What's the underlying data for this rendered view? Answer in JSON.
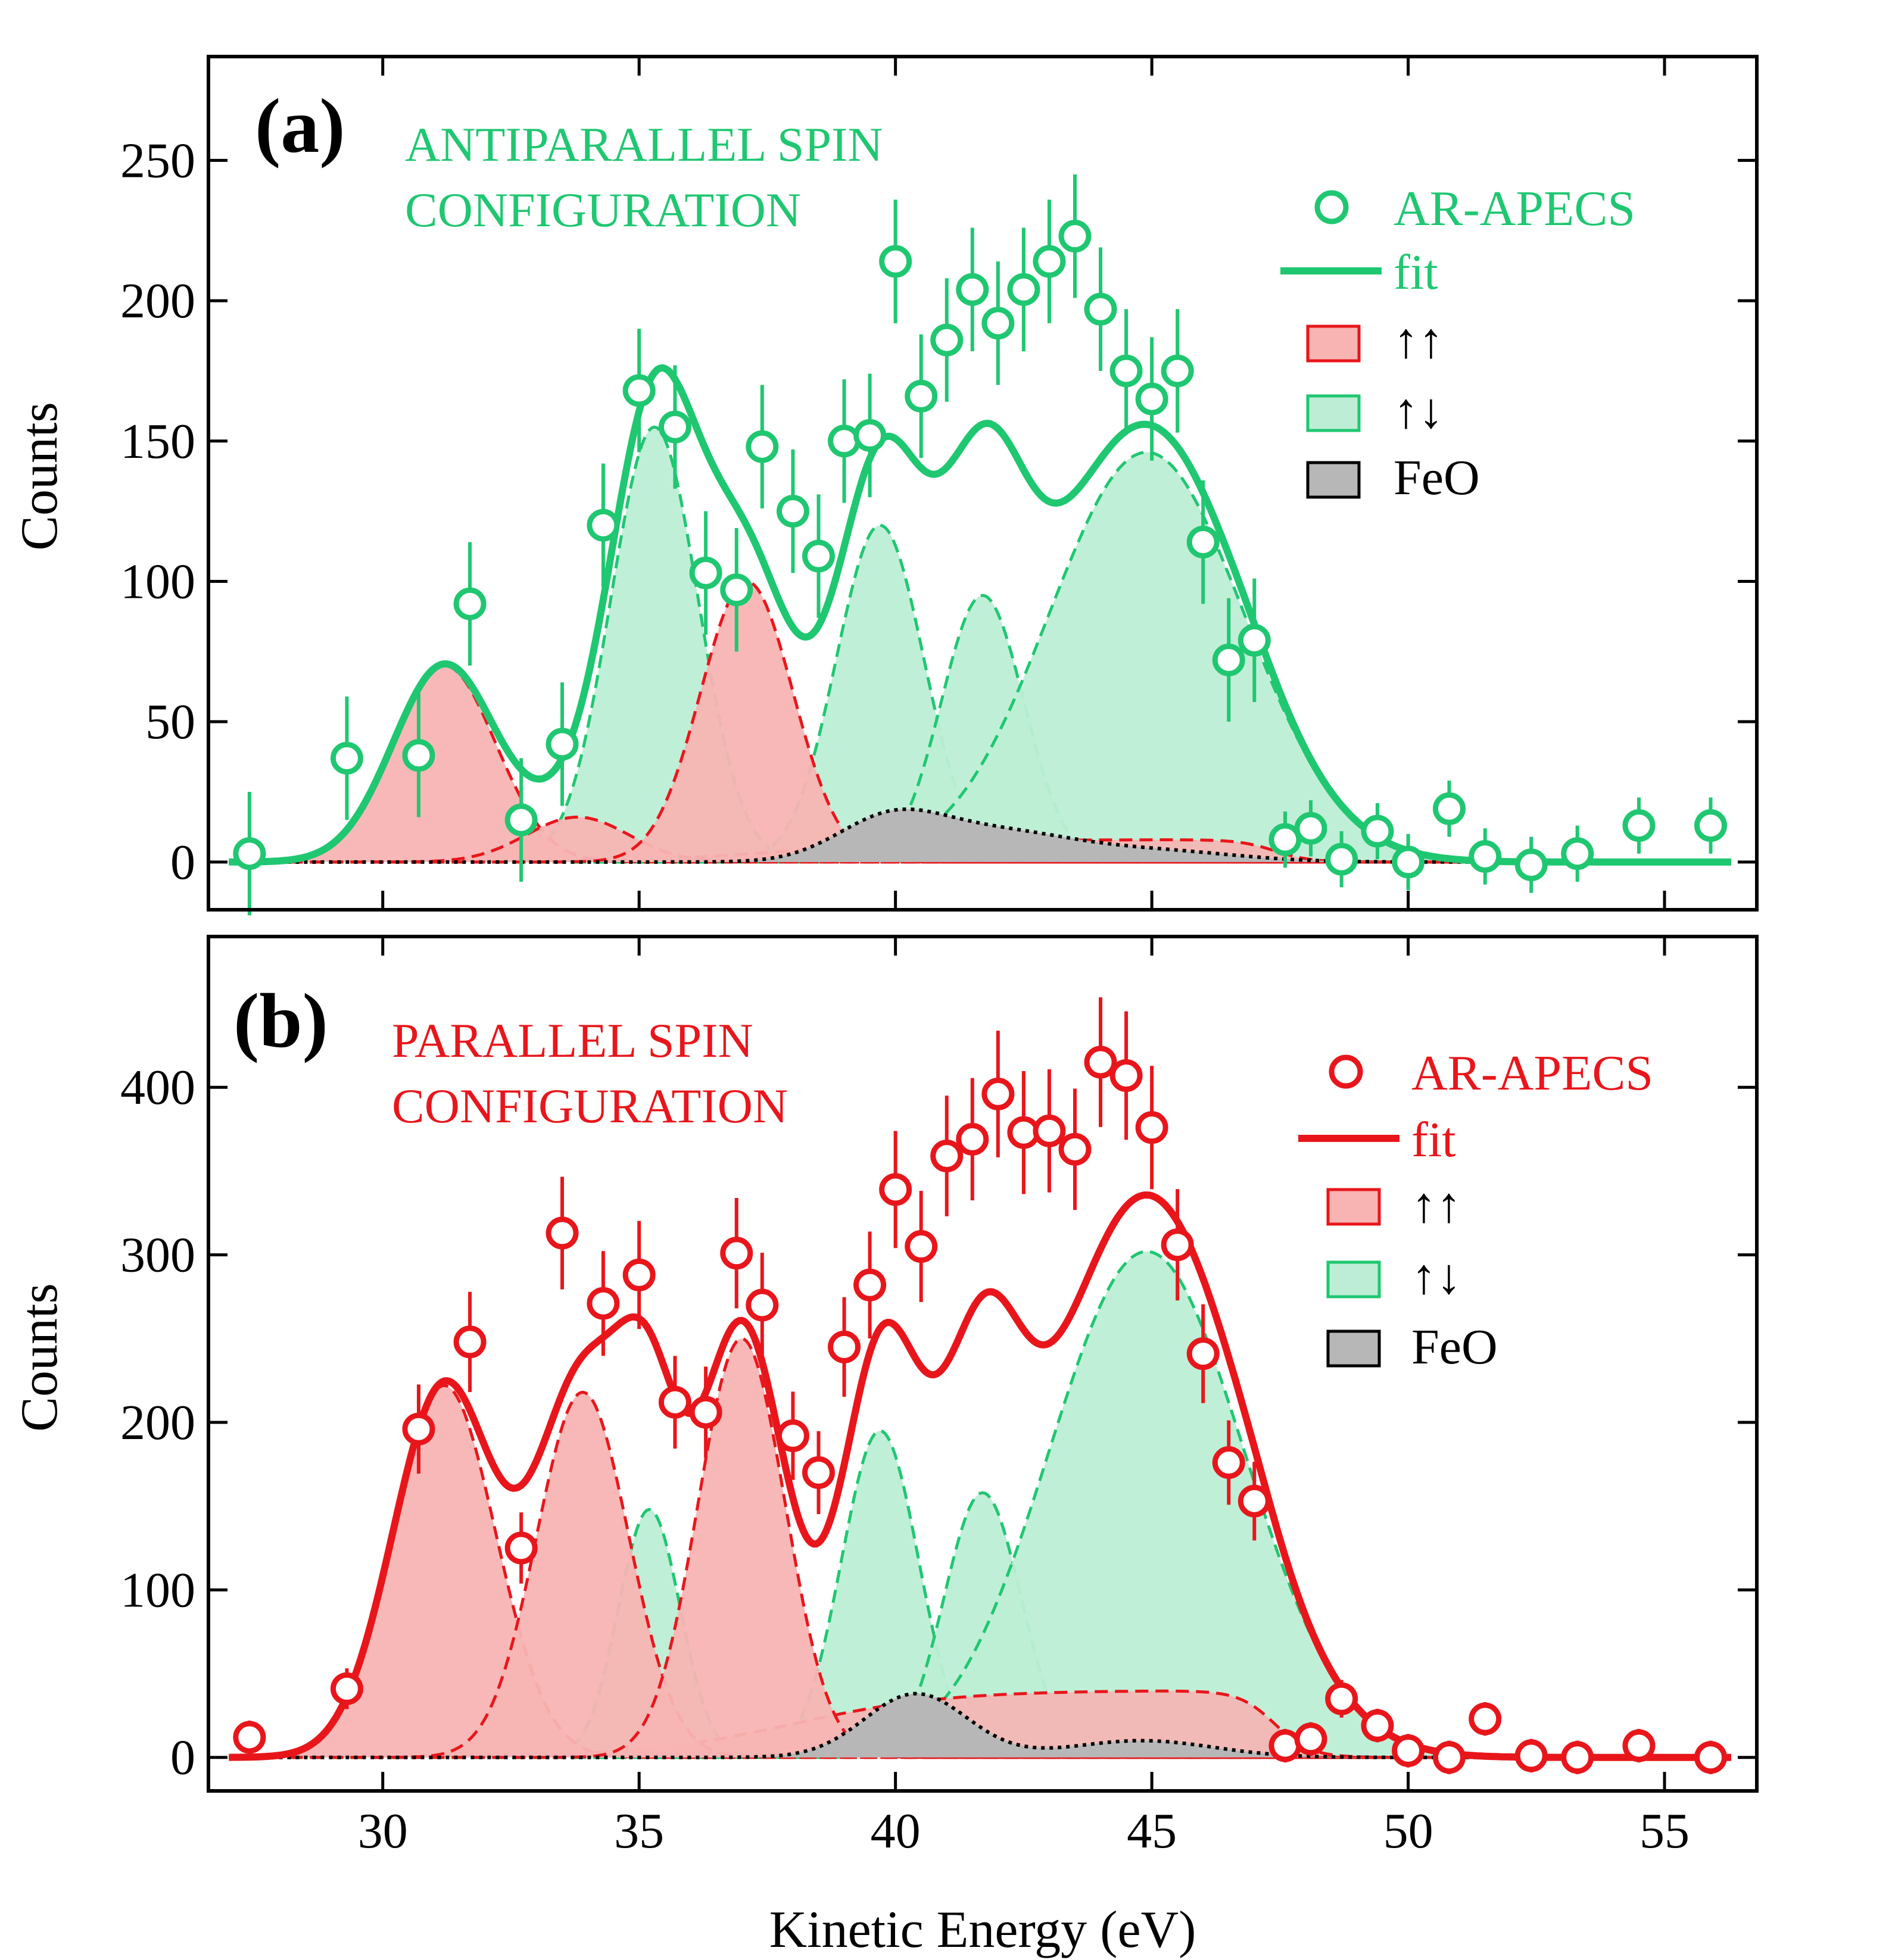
{
  "figure": {
    "xlabel": "Kinetic Energy (eV)",
    "colors": {
      "antiparallel": "#1fc771",
      "parallel": "#e8161b",
      "up_up_fill": "#f7b4b3",
      "up_down_fill": "#bdeed5",
      "feo_fill": "#b7b7b7"
    }
  },
  "chart_data": [
    {
      "type": "scatter",
      "panel_label": "(a)",
      "config_label": [
        "ANTIPARALLEL SPIN",
        "CONFIGURATION"
      ],
      "xlabel": "Kinetic Energy (eV)",
      "ylabel": "Counts",
      "xlim": [
        26.6,
        56.8
      ],
      "ylim": [
        -17,
        287
      ],
      "xticks": [
        30,
        35,
        40,
        45,
        50,
        55
      ],
      "yticks": [
        0,
        50,
        100,
        150,
        200,
        250
      ],
      "legend": {
        "position": "top-right",
        "entries": [
          "AR-APECS",
          "fit",
          "↑↑",
          "↑↓",
          "FeO"
        ]
      },
      "data": {
        "x": [
          27.4,
          29.3,
          30.7,
          31.7,
          32.7,
          33.5,
          34.3,
          35.0,
          35.7,
          36.3,
          36.9,
          37.4,
          38.0,
          38.5,
          39.0,
          39.5,
          40.0,
          40.5,
          41.0,
          41.5,
          42.0,
          42.5,
          43.0,
          43.5,
          44.0,
          44.5,
          45.0,
          45.5,
          46.0,
          46.5,
          47.0,
          47.6,
          48.1,
          48.7,
          49.4,
          50.0,
          50.8,
          51.5,
          52.4,
          53.3,
          54.5,
          55.9
        ],
        "y": [
          3,
          37,
          38,
          92,
          15,
          42,
          120,
          168,
          155,
          103,
          97,
          148,
          125,
          109,
          150,
          152,
          214,
          166,
          186,
          204,
          192,
          204,
          214,
          223,
          197,
          175,
          165,
          175,
          114,
          72,
          79,
          8,
          12,
          1,
          11,
          0,
          19,
          2,
          -1,
          3,
          13,
          13
        ],
        "err": [
          22,
          22,
          22,
          22,
          22,
          22,
          22,
          22,
          22,
          22,
          22,
          22,
          22,
          22,
          22,
          22,
          22,
          22,
          22,
          22,
          22,
          22,
          22,
          22,
          22,
          22,
          22,
          22,
          22,
          22,
          22,
          10,
          10,
          10,
          10,
          10,
          10,
          10,
          10,
          10,
          10,
          10
        ]
      },
      "components": {
        "up_up": [
          [
            31.2,
            1.0,
            70
          ],
          [
            33.8,
            1.0,
            16
          ],
          [
            37.1,
            0.9,
            100
          ]
        ],
        "up_down": [
          [
            35.3,
            0.85,
            155
          ],
          [
            39.7,
            0.85,
            120
          ],
          [
            41.7,
            0.8,
            95
          ],
          [
            44.9,
            1.9,
            146
          ]
        ],
        "feo": [
          [
            39.9,
            1.05,
            15
          ],
          [
            42.0,
            1.4,
            10
          ],
          [
            45.0,
            1.6,
            4
          ]
        ],
        "background": {
          "edge": 38.0,
          "width": 1.5,
          "level": 8
        }
      }
    },
    {
      "type": "scatter",
      "panel_label": "(b)",
      "config_label": [
        "PARALLEL SPIN",
        "CONFIGURATION"
      ],
      "xlabel": "Kinetic Energy (eV)",
      "ylabel": "Counts",
      "xlim": [
        26.6,
        56.8
      ],
      "ylim": [
        -20,
        490
      ],
      "xticks": [
        30,
        35,
        40,
        45,
        50,
        55
      ],
      "yticks": [
        0,
        100,
        200,
        300,
        400
      ],
      "legend": {
        "position": "top-right",
        "entries": [
          "AR-APECS",
          "fit",
          "↑↑",
          "↑↓",
          "FeO"
        ]
      },
      "data": {
        "x": [
          27.4,
          29.3,
          30.7,
          31.7,
          32.7,
          33.5,
          34.3,
          35.0,
          35.7,
          36.3,
          36.9,
          37.4,
          38.0,
          38.5,
          39.0,
          39.5,
          40.0,
          40.5,
          41.0,
          41.5,
          42.0,
          42.5,
          43.0,
          43.5,
          44.0,
          44.5,
          45.0,
          45.5,
          46.0,
          46.5,
          47.0,
          47.6,
          48.1,
          48.7,
          49.4,
          50.0,
          50.8,
          51.5,
          52.4,
          53.3,
          54.5,
          55.9
        ],
        "y": [
          12,
          41,
          196,
          248,
          125,
          313,
          271,
          288,
          212,
          206,
          301,
          270,
          192,
          170,
          245,
          282,
          339,
          305,
          359,
          369,
          396,
          373,
          374,
          363,
          415,
          407,
          376,
          306,
          241,
          176,
          153,
          7,
          11,
          35,
          19,
          4,
          0,
          23,
          1,
          0,
          7,
          0
        ]
      },
      "components": {
        "up_up": [
          [
            31.2,
            1.0,
            222
          ],
          [
            33.9,
            0.9,
            218
          ],
          [
            37.0,
            0.85,
            250
          ]
        ],
        "up_down": [
          [
            35.2,
            0.6,
            148
          ],
          [
            39.7,
            0.75,
            195
          ],
          [
            41.7,
            0.75,
            158
          ],
          [
            44.9,
            1.9,
            302
          ]
        ],
        "feo": [
          [
            40.4,
            1.0,
            38
          ],
          [
            44.8,
            1.4,
            10
          ]
        ],
        "background": {
          "edge": 38.0,
          "width": 1.5,
          "level": 40
        }
      }
    }
  ]
}
